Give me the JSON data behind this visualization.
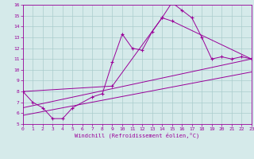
{
  "line1_x": [
    0,
    1,
    2,
    3,
    4,
    5,
    7,
    8,
    9,
    10,
    11,
    12,
    13,
    14,
    15,
    16,
    17,
    18,
    19,
    20,
    21,
    22,
    23
  ],
  "line1_y": [
    8.0,
    7.0,
    6.5,
    5.5,
    5.5,
    6.5,
    7.5,
    7.8,
    10.7,
    13.3,
    12.0,
    11.8,
    13.5,
    14.8,
    16.2,
    15.5,
    14.8,
    13.0,
    11.0,
    11.2,
    11.0,
    11.2,
    11.0
  ],
  "line2_x": [
    0,
    9,
    14,
    15,
    23
  ],
  "line2_y": [
    8.0,
    8.5,
    14.8,
    14.5,
    11.0
  ],
  "line3_x": [
    0,
    23
  ],
  "line3_y": [
    6.5,
    11.0
  ],
  "line4_x": [
    0,
    23
  ],
  "line4_y": [
    5.8,
    9.8
  ],
  "color": "#990099",
  "bg_color": "#d5eaea",
  "grid_color": "#aacccc",
  "xlabel": "Windchill (Refroidissement éolien,°C)",
  "xlim": [
    0,
    23
  ],
  "ylim": [
    5,
    16
  ],
  "yticks": [
    5,
    6,
    7,
    8,
    9,
    10,
    11,
    12,
    13,
    14,
    15,
    16
  ],
  "xticks": [
    0,
    1,
    2,
    3,
    4,
    5,
    6,
    7,
    8,
    9,
    10,
    11,
    12,
    13,
    14,
    15,
    16,
    17,
    18,
    19,
    20,
    21,
    22,
    23
  ]
}
